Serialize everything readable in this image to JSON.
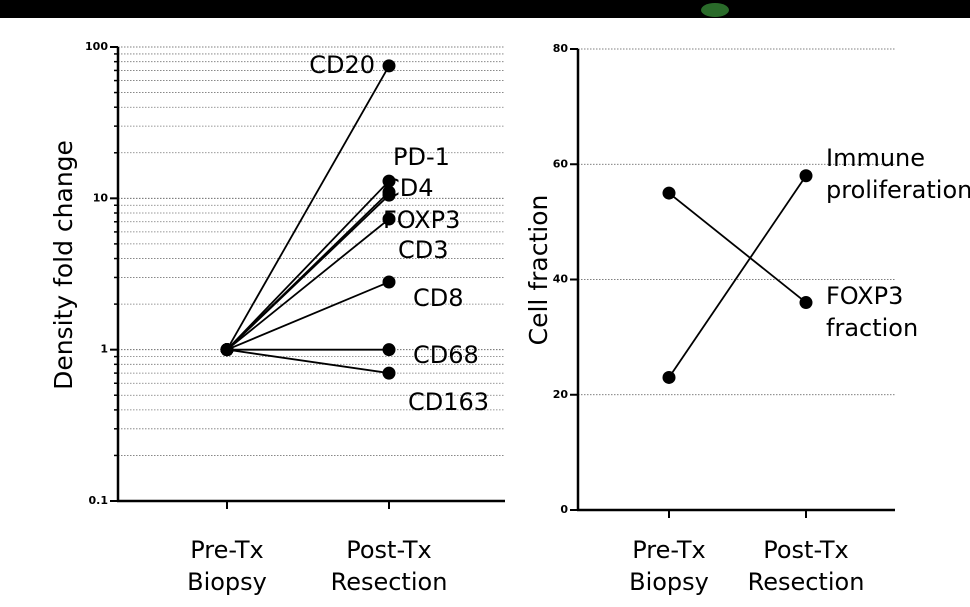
{
  "chart_data": [
    {
      "type": "line",
      "y_label": "Density fold change",
      "log_y": true,
      "grid": true,
      "minor_grid": true,
      "color": "#000000",
      "categories": [
        "Pre-Tx Biopsy",
        "Post-Tx Resection"
      ],
      "ylim": [
        0.1,
        100
      ],
      "yticks": [
        0.1,
        1,
        10,
        100
      ],
      "series": [
        {
          "name": "CD20",
          "values": [
            1,
            75
          ]
        },
        {
          "name": "PD-1",
          "values": [
            1,
            13
          ]
        },
        {
          "name": "CD4",
          "values": [
            1,
            11
          ]
        },
        {
          "name": "FOXP3",
          "values": [
            1,
            7.3
          ]
        },
        {
          "name": "CD3",
          "values": [
            1,
            10.5
          ]
        },
        {
          "name": "CD8",
          "values": [
            1,
            2.8
          ]
        },
        {
          "name": "CD68",
          "values": [
            1,
            1
          ]
        },
        {
          "name": "CD163",
          "values": [
            1,
            0.7
          ]
        }
      ]
    },
    {
      "type": "line",
      "y_label": "Cell fraction",
      "grid": true,
      "color": "#000000",
      "categories": [
        "Pre-Tx Biopsy",
        "Post-Tx Resection"
      ],
      "ylim": [
        0,
        80
      ],
      "yticks": [
        0,
        20,
        40,
        60,
        80
      ],
      "series": [
        {
          "name": "Immune proliferation",
          "values": [
            23,
            58
          ]
        },
        {
          "name": "FOXP3 fraction",
          "values": [
            55,
            36
          ]
        }
      ]
    }
  ]
}
